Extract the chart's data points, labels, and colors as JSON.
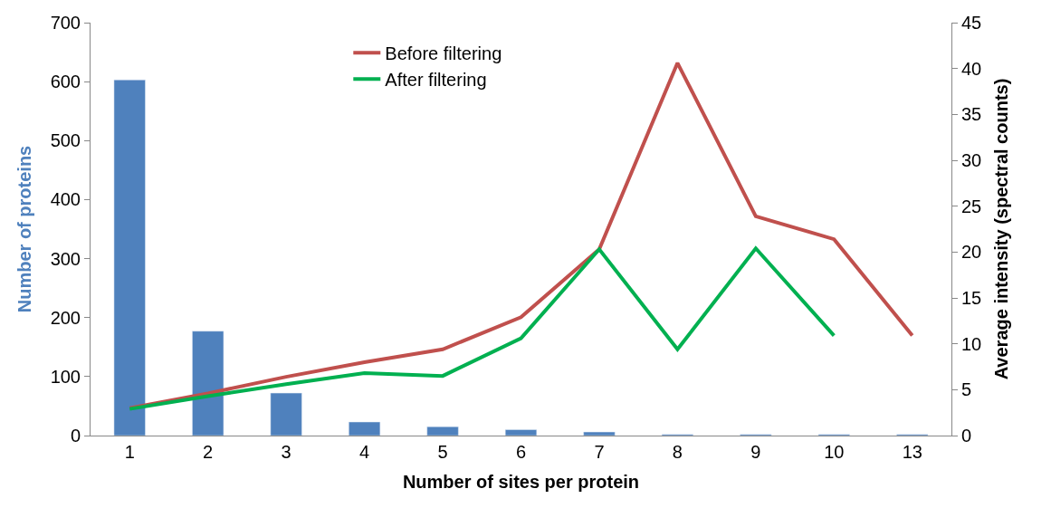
{
  "chart_data": {
    "type": "bar",
    "xlabel": "Number of sites per protein",
    "ylabel": "Number of proteins",
    "y2label": "Average intensity (spectral counts)",
    "categories": [
      "1",
      "2",
      "3",
      "4",
      "5",
      "6",
      "7",
      "8",
      "9",
      "10",
      "13"
    ],
    "series": [
      {
        "color": "#4f81bd",
        "values": [
          603,
          177,
          72,
          23,
          15,
          10,
          6,
          2,
          2,
          2,
          2
        ]
      },
      {
        "type": "line",
        "name": "Before filtering",
        "axis": "y2",
        "color": "#c0504d",
        "values": [
          3.0,
          4.6,
          6.4,
          8.0,
          9.4,
          12.9,
          20.3,
          40.6,
          23.9,
          21.4,
          10.9
        ]
      },
      {
        "type": "line",
        "name": "After filtering",
        "axis": "y2",
        "color": "#00b050",
        "values": [
          2.9,
          4.3,
          5.6,
          6.8,
          6.5,
          10.6,
          20.3,
          9.4,
          20.4,
          10.9,
          null
        ]
      }
    ],
    "ylim": [
      0,
      700
    ],
    "yticks": [
      0,
      100,
      200,
      300,
      400,
      500,
      600,
      700
    ],
    "y2lim": [
      0,
      45
    ],
    "y2ticks": [
      0,
      5,
      10,
      15,
      20,
      25,
      30,
      35,
      40,
      45
    ],
    "legend": "top",
    "grid": false,
    "marker": "none",
    "line_style": "solid"
  }
}
